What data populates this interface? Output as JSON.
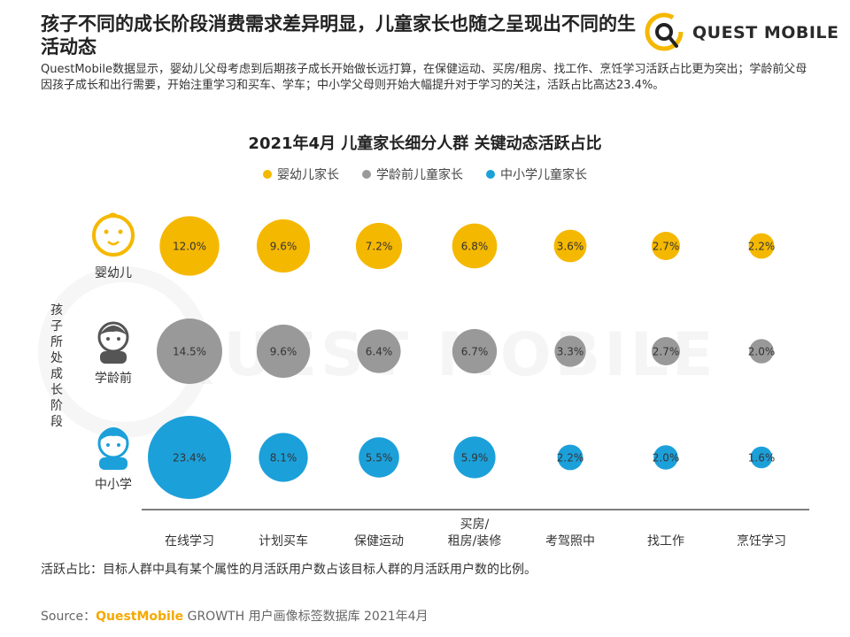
{
  "header": {
    "title": "孩子不同的成长阶段消费需求差异明显，儿童家长也随之呈现出不同的生活动态",
    "logo_text": "QUEST MOBILE",
    "description": "QuestMobile数据显示，婴幼儿父母考虑到后期孩子成长开始做长远打算，在保健运动、买房/租房、找工作、烹饪学习活跃占比更为突出；学龄前父母因孩子成长和出行需要，开始注重学习和买车、学车；中小学父母则开始大幅提升对于学习的关注，活跃占比高达23.4%。"
  },
  "watermark": "QUEST MOBILE",
  "footnote": "活跃占比：目标人群中具有某个属性的月活跃用户数占该目标人群的月活跃用户数的比例。",
  "source": {
    "label": "Source：",
    "brand": "QuestMobile",
    "rest": " GROWTH 用户画像标签数据库 2021年4月"
  },
  "chart_data": {
    "type": "bubble-matrix",
    "title": "2021年4月 儿童家长细分人群 关键动态活跃占比",
    "y_axis_label": "孩子所处成长阶段",
    "categories": [
      "在线学习",
      "计划买车",
      "保健运动",
      "买房/\n租房/装修",
      "考驾照中",
      "找工作",
      "烹饪学习"
    ],
    "series": [
      {
        "name": "婴幼儿家长",
        "row_label": "婴幼儿",
        "icon": "baby-face-icon",
        "color": "#f5b800",
        "values": [
          12.0,
          9.6,
          7.2,
          6.8,
          3.6,
          2.7,
          2.2
        ]
      },
      {
        "name": "学龄前儿童家长",
        "row_label": "学龄前",
        "icon": "preschool-child-icon",
        "color": "#999999",
        "values": [
          14.5,
          9.6,
          6.4,
          6.7,
          3.3,
          2.7,
          2.0
        ]
      },
      {
        "name": "中小学儿童家长",
        "row_label": "中小学",
        "icon": "student-child-icon",
        "color": "#1ca0da",
        "values": [
          23.4,
          8.1,
          5.5,
          5.9,
          2.2,
          2.0,
          1.6
        ]
      }
    ],
    "value_suffix": "%",
    "value_decimals": 1
  }
}
